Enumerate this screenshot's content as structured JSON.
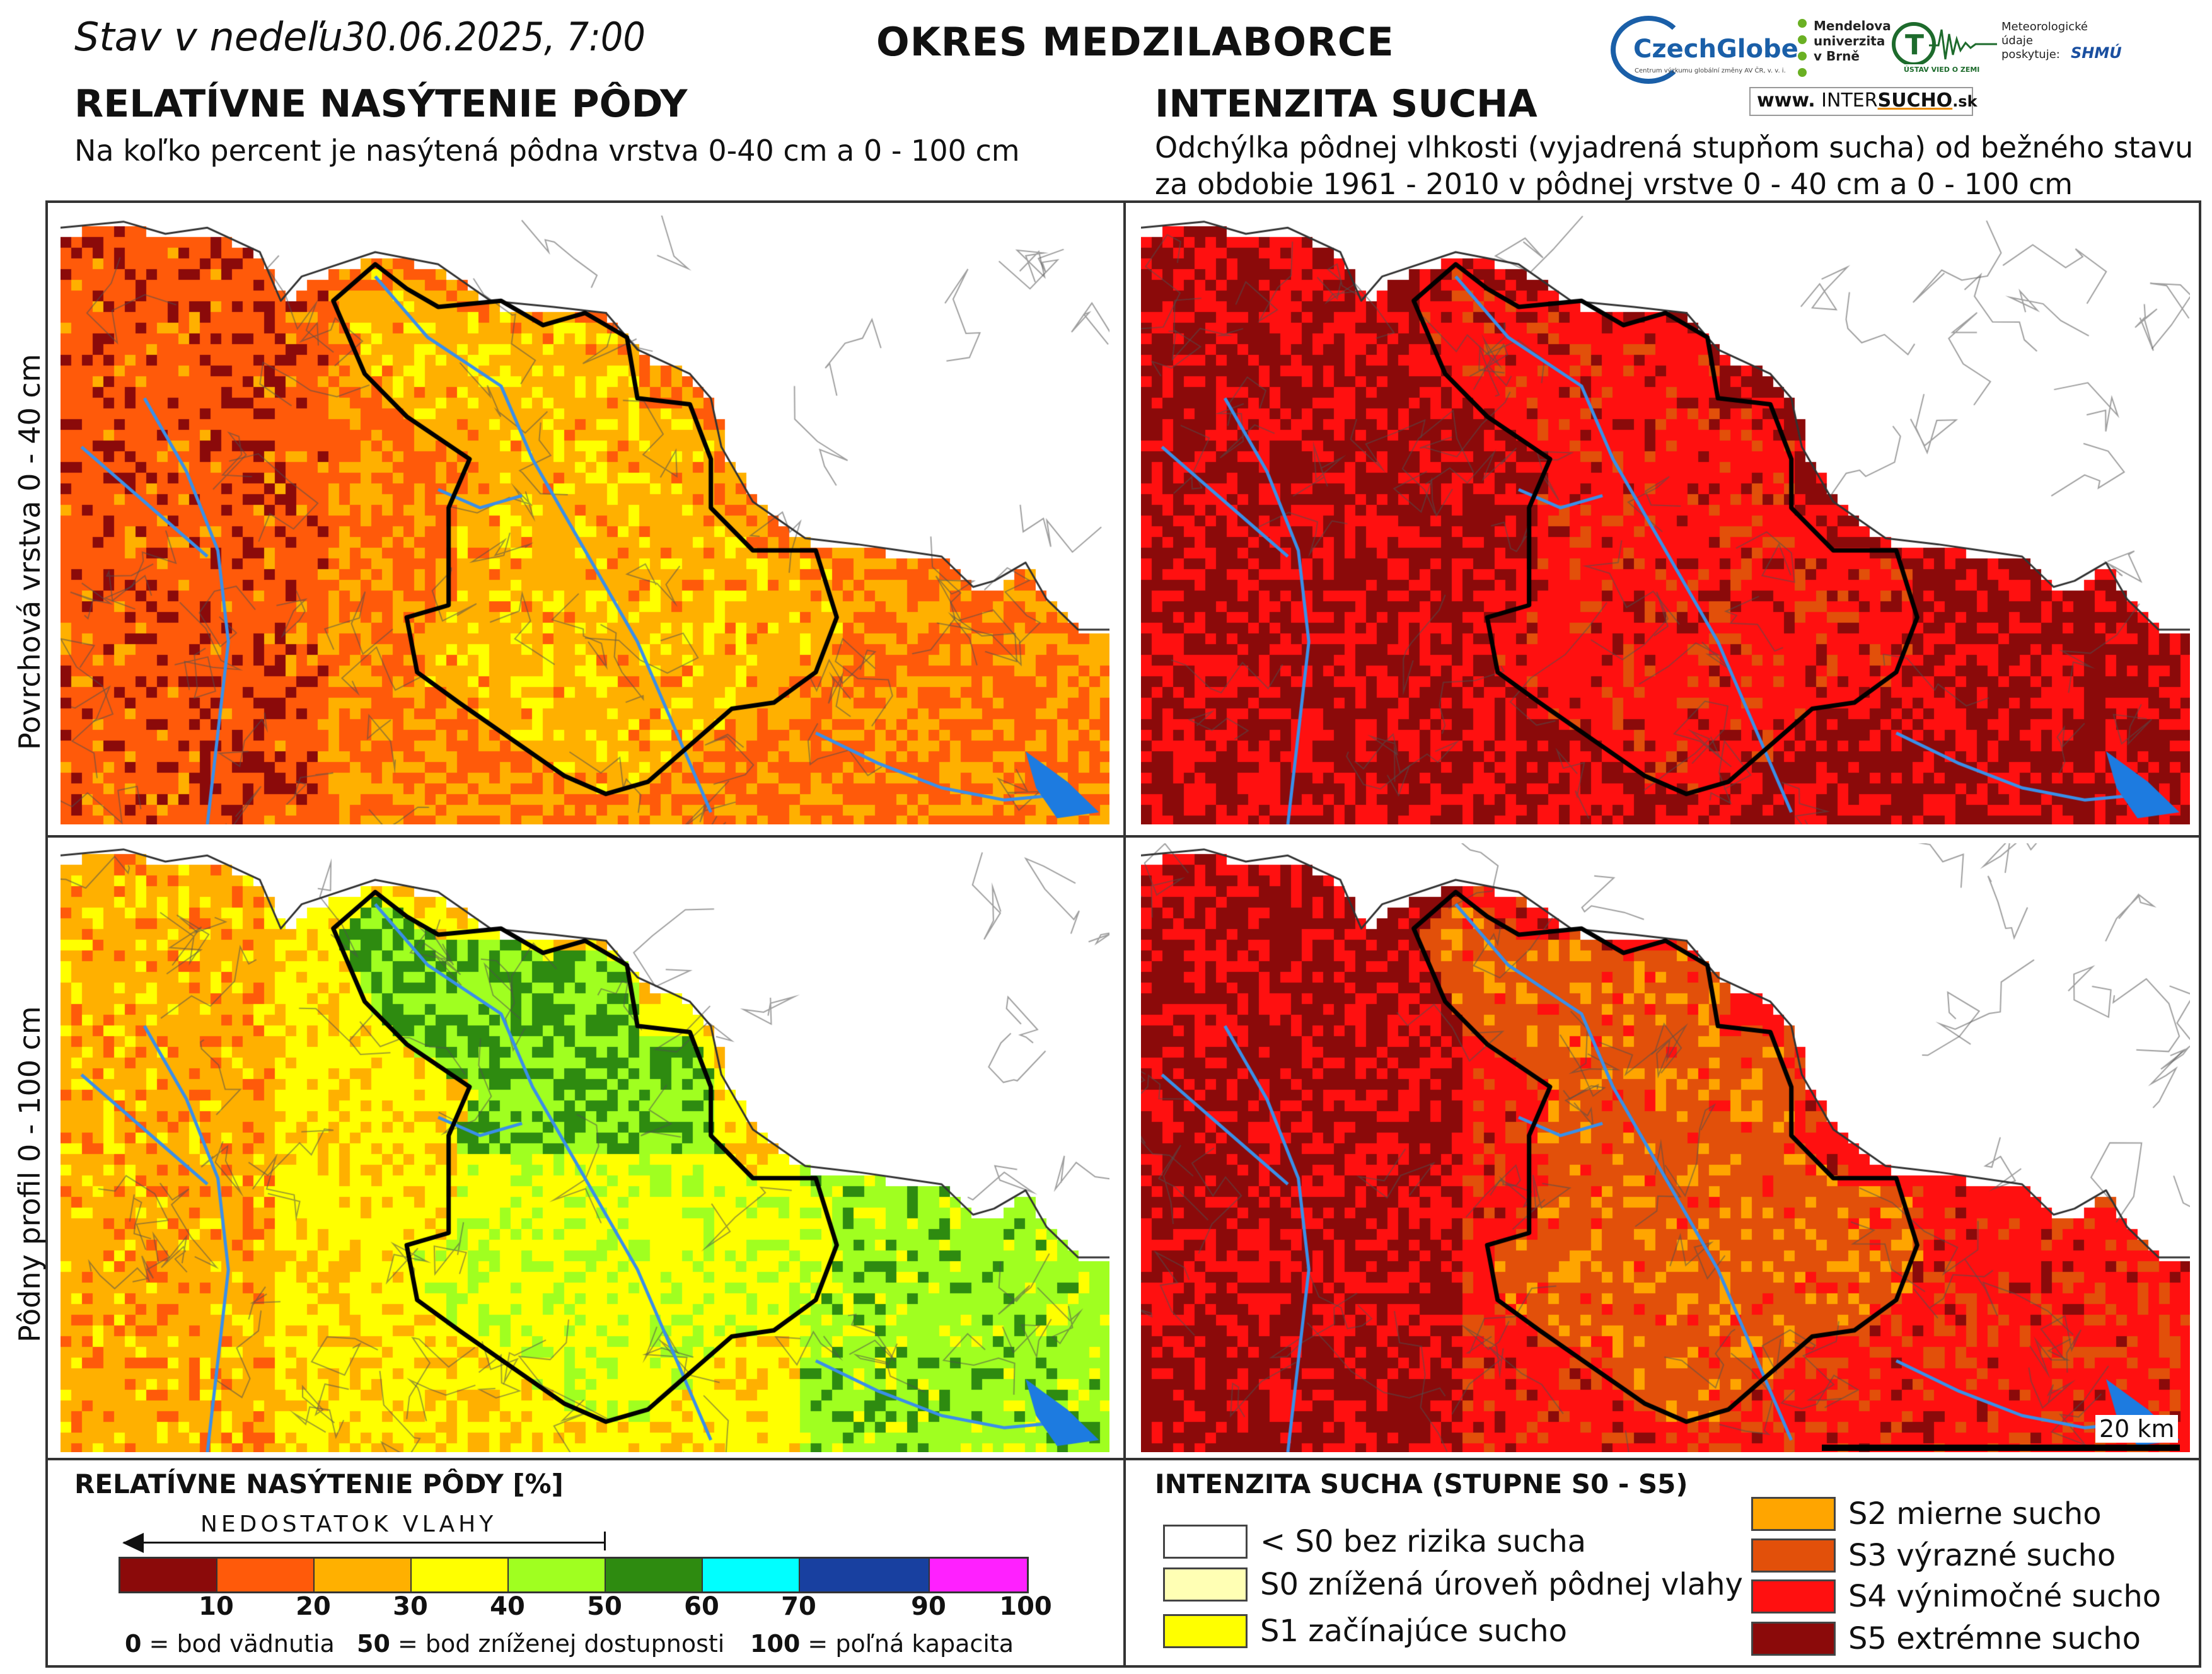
{
  "header": {
    "date_prefix": "Stav v nedeľu",
    "date_value": "30.06.2025, 7:00",
    "district": "OKRES  MEDZILABORCE"
  },
  "left_panel": {
    "title": "RELATÍVNE NASÝTENIE PÔDY",
    "subtitle": "Na koľko percent je nasýtená pôdna vrstva 0-40 cm a 0 - 100 cm"
  },
  "right_panel": {
    "title": "INTENZITA SUCHA",
    "subtitle_line1": "Odchýlka pôdnej vlhkosti (vyjadrená stupňom sucha) od bežného stavu",
    "subtitle_line2": "za obdobie 1961 - 2010 v pôdnej vrstve 0 - 40 cm a 0 - 100 cm"
  },
  "rows": {
    "top_label": "Povrchová vrstva 0 - 40 cm",
    "bottom_label": "Pôdny profil 0 - 100 cm"
  },
  "logos": {
    "czechglobe": "CzechGlobe",
    "czechglobe_small": "Centrum výzkumu globální změny AV ČR, v. v. i.",
    "mendel": "Mendelova\nuniverzita\nv Brně",
    "ug": "ÚSTAV VIED O ZEMI",
    "meteo": "Meteorologické údaje poskytuje:",
    "shmu": "SHMÚ",
    "intersucho_prefix": "www.",
    "intersucho_a": "INTER",
    "intersucho_b": "SUCHO",
    "intersucho_suffix": ".sk"
  },
  "scale": {
    "label": "20 km"
  },
  "legend_saturation": {
    "title": "RELATÍVNE NASÝTENIE PÔDY [%]",
    "arrow_label": "NEDOSTATOK VLAHY",
    "ticks": [
      "10",
      "20",
      "30",
      "40",
      "50",
      "60",
      "70",
      "90",
      "100"
    ],
    "colors": [
      "#8b0a0a",
      "#ff5a0a",
      "#ffb000",
      "#ffff00",
      "#a0ff20",
      "#2e8b10",
      "#00ffff",
      "#1840a0",
      "#ff20ff"
    ],
    "note_0_num": "0",
    "note_0_text": " = bod vädnutia",
    "note_50_num": "50",
    "note_50_text": " = bod zníženej dostupnosti",
    "note_100_num": "100",
    "note_100_text": " = poľná kapacita"
  },
  "legend_drought": {
    "title": "INTENZITA SUCHA (STUPNE S0 - S5)",
    "items": [
      {
        "label": "< S0 bez rizika sucha",
        "color": "#ffffff"
      },
      {
        "label": "S0 znížená úroveň pôdnej vlahy",
        "color": "#ffffb4"
      },
      {
        "label": "S1 začínajúce sucho",
        "color": "#ffff00"
      },
      {
        "label": "S2 mierne sucho",
        "color": "#ffa500"
      },
      {
        "label": "S3 výrazné sucho",
        "color": "#e2500a"
      },
      {
        "label": "S4 výnimočné sucho",
        "color": "#ff1010"
      },
      {
        "label": "S5 extrémne sucho",
        "color": "#8b0a0a"
      }
    ]
  },
  "colors": {
    "district_border": "#000000",
    "river": "#3a8fe8",
    "reservoir": "#1d7be0"
  }
}
